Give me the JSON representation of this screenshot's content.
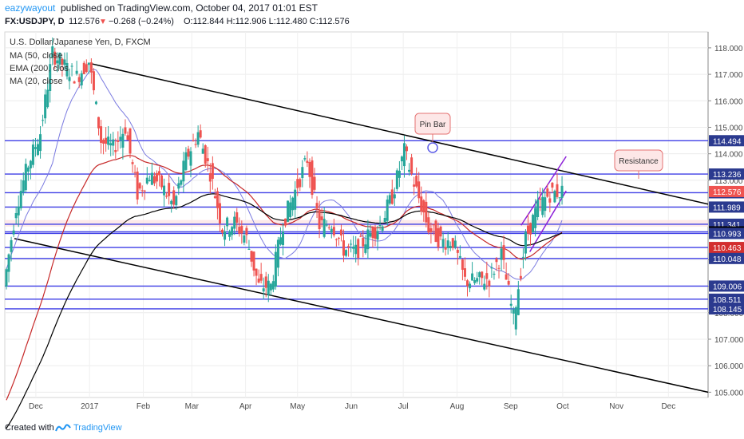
{
  "header": {
    "author": "eazywayout",
    "published_text": "published on TradingView.com, October 04, 2017 01:01 EST",
    "symbol_line": "FX:USDJPY, D",
    "last": "112.576",
    "change": "−0.268 (−0.24%)",
    "ohlc": "O:112.844 H:112.906 L:112.480 C:112.576"
  },
  "legend": {
    "title": "U.S. Dollar/Japanese Yen, D, FXCM",
    "items": [
      "MA (50, close",
      "EMA (200, clos",
      "MA (20, close"
    ]
  },
  "annotations": {
    "pin_bar": "Pin Bar",
    "resistance": "Resistance"
  },
  "footer": {
    "created_with": "Created with",
    "brand": "TradingView"
  },
  "colors": {
    "up": "#26a69a",
    "down": "#ef5350",
    "level_lines": "#3f3fe6",
    "ma50": "#000000",
    "ema200": "#c62828",
    "ma20": "#7b7be0",
    "channel": "#8c1fd8",
    "last_price_bg": "#ef5350",
    "label_bg": "#2b3a8f",
    "brand": "#2196f3"
  },
  "chart_data": {
    "type": "candlestick",
    "symbol": "USDJPY",
    "timeframe": "D",
    "x_ticks": [
      "Dec",
      "2017",
      "Feb",
      "Mar",
      "Apr",
      "May",
      "Jun",
      "Jul",
      "Aug",
      "Sep",
      "Oct",
      "Nov",
      "Dec"
    ],
    "y_ticks": [
      118.0,
      117.0,
      116.0,
      115.0,
      114.0,
      113.0,
      112.0,
      111.0,
      110.0,
      109.0,
      108.0,
      107.0,
      106.0,
      105.0
    ],
    "ylim": [
      104.8,
      118.6
    ],
    "horizontal_levels": [
      {
        "label": "114.494",
        "value": 114.494
      },
      {
        "label": "113.236",
        "value": 113.236
      },
      {
        "label": "112.529",
        "value": 112.529
      },
      {
        "label": "111.989",
        "value": 111.989
      },
      {
        "label": "111.341",
        "value": 111.341
      },
      {
        "label": "111.053",
        "value": 111.053
      },
      {
        "label": "110.993",
        "value": 110.993
      },
      {
        "label": "110.463",
        "value": 110.463
      },
      {
        "label": "110.048",
        "value": 110.048
      },
      {
        "label": "109.006",
        "value": 109.006
      },
      {
        "label": "108.511",
        "value": 108.511
      },
      {
        "label": "108.145",
        "value": 108.145
      }
    ],
    "last_price": {
      "label": "112.576",
      "value": 112.576
    },
    "highlighted_levels": [
      "111.053",
      "110.463",
      "112.576"
    ],
    "series_close_path": [
      {
        "date": "2016-11-14",
        "close": 109.0
      },
      {
        "date": "2016-11-21",
        "close": 112.0
      },
      {
        "date": "2016-11-28",
        "close": 113.6
      },
      {
        "date": "2016-12-05",
        "close": 114.8
      },
      {
        "date": "2016-12-12",
        "close": 117.8
      },
      {
        "date": "2016-12-19",
        "close": 117.3
      },
      {
        "date": "2016-12-26",
        "close": 116.9
      },
      {
        "date": "2017-01-02",
        "close": 117.5
      },
      {
        "date": "2017-01-09",
        "close": 114.5
      },
      {
        "date": "2017-01-16",
        "close": 114.2
      },
      {
        "date": "2017-01-23",
        "close": 115.0
      },
      {
        "date": "2017-01-30",
        "close": 112.5
      },
      {
        "date": "2017-02-06",
        "close": 113.2
      },
      {
        "date": "2017-02-13",
        "close": 112.8
      },
      {
        "date": "2017-02-20",
        "close": 112.0
      },
      {
        "date": "2017-02-27",
        "close": 113.8
      },
      {
        "date": "2017-03-06",
        "close": 114.8
      },
      {
        "date": "2017-03-13",
        "close": 113.3
      },
      {
        "date": "2017-03-20",
        "close": 111.2
      },
      {
        "date": "2017-03-27",
        "close": 111.4
      },
      {
        "date": "2017-04-03",
        "close": 110.8
      },
      {
        "date": "2017-04-10",
        "close": 109.0
      },
      {
        "date": "2017-04-17",
        "close": 109.0
      },
      {
        "date": "2017-04-24",
        "close": 111.4
      },
      {
        "date": "2017-05-01",
        "close": 112.6
      },
      {
        "date": "2017-05-08",
        "close": 113.8
      },
      {
        "date": "2017-05-15",
        "close": 111.3
      },
      {
        "date": "2017-05-22",
        "close": 111.4
      },
      {
        "date": "2017-05-29",
        "close": 110.4
      },
      {
        "date": "2017-06-05",
        "close": 110.3
      },
      {
        "date": "2017-06-12",
        "close": 110.9
      },
      {
        "date": "2017-06-19",
        "close": 111.3
      },
      {
        "date": "2017-06-26",
        "close": 112.4
      },
      {
        "date": "2017-07-03",
        "close": 114.1
      },
      {
        "date": "2017-07-10",
        "close": 112.6
      },
      {
        "date": "2017-07-17",
        "close": 111.2
      },
      {
        "date": "2017-07-24",
        "close": 110.7
      },
      {
        "date": "2017-07-31",
        "close": 110.7
      },
      {
        "date": "2017-08-07",
        "close": 109.2
      },
      {
        "date": "2017-08-14",
        "close": 109.2
      },
      {
        "date": "2017-08-21",
        "close": 109.3
      },
      {
        "date": "2017-08-28",
        "close": 110.2
      },
      {
        "date": "2017-09-04",
        "close": 107.8
      },
      {
        "date": "2017-09-11",
        "close": 110.8
      },
      {
        "date": "2017-09-18",
        "close": 112.0
      },
      {
        "date": "2017-09-25",
        "close": 112.5
      },
      {
        "date": "2017-10-02",
        "close": 112.576
      }
    ],
    "indicators": [
      {
        "name": "MA (50, close"
      },
      {
        "name": "EMA (200, clos"
      },
      {
        "name": "MA (20, close"
      }
    ]
  }
}
